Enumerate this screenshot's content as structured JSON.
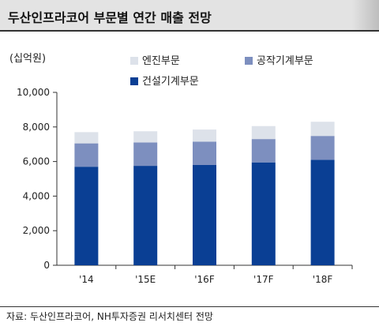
{
  "header": {
    "title": "두산인프라코어 부문별 연간 매출 전망"
  },
  "chart_data": {
    "type": "bar",
    "stacked": true,
    "unit_label": "(십억원)",
    "categories": [
      "'14",
      "'15E",
      "'16F",
      "'17F",
      "'18F"
    ],
    "series": [
      {
        "name": "건설기계부문",
        "color": "#0a3f94",
        "values": [
          5700,
          5750,
          5800,
          5950,
          6100
        ]
      },
      {
        "name": "공작기계부문",
        "color": "#7d8fbf",
        "values": [
          1350,
          1350,
          1350,
          1350,
          1380
        ]
      },
      {
        "name": "엔진부문",
        "color": "#dde2ea",
        "values": [
          650,
          650,
          700,
          750,
          820
        ]
      }
    ],
    "ylim": [
      0,
      10000
    ],
    "yticks": [
      "0",
      "2,000",
      "4,000",
      "6,000",
      "8,000",
      "10,000"
    ],
    "legend_position": "top",
    "grid": false
  },
  "footer": {
    "source": "자료: 두산인프라코어, NH투자증권 리서치센터 전망"
  }
}
